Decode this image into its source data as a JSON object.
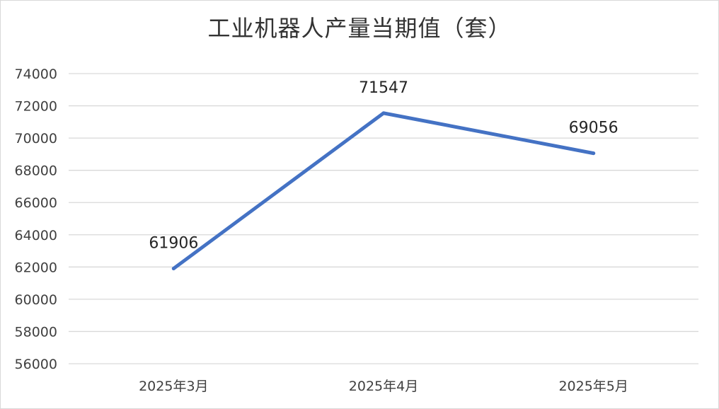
{
  "chart_data": {
    "type": "line",
    "title": "工业机器人产量当期值（套）",
    "xlabel": "",
    "ylabel": "",
    "categories": [
      "2025年3月",
      "2025年4月",
      "2025年5月"
    ],
    "series": [
      {
        "values": [
          61906,
          71547,
          69056
        ],
        "color": "#4472c4"
      }
    ],
    "ylim": [
      56000,
      74000
    ],
    "yticks": [
      56000,
      58000,
      60000,
      62000,
      64000,
      66000,
      68000,
      70000,
      72000,
      74000
    ],
    "grid": true,
    "legend": "none",
    "data_labels": [
      "61906",
      "71547",
      "69056"
    ]
  }
}
